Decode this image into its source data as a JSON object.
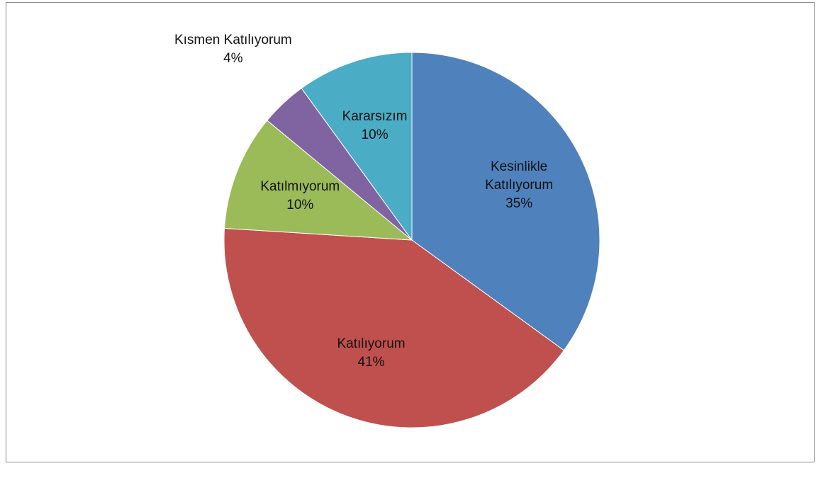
{
  "chart_data": {
    "type": "pie",
    "categories": [
      "Kesinlikle Katılıyorum",
      "Katılıyorum",
      "Katılmıyorum",
      "Kısmen Katılıyorum",
      "Kararsızım"
    ],
    "values": [
      35,
      41,
      10,
      4,
      10
    ],
    "value_labels": [
      "35%",
      "41%",
      "10%",
      "4%",
      "10%"
    ],
    "colors": [
      "#4f81bd",
      "#c0504d",
      "#9bbb59",
      "#8064a2",
      "#4bacc6"
    ]
  }
}
